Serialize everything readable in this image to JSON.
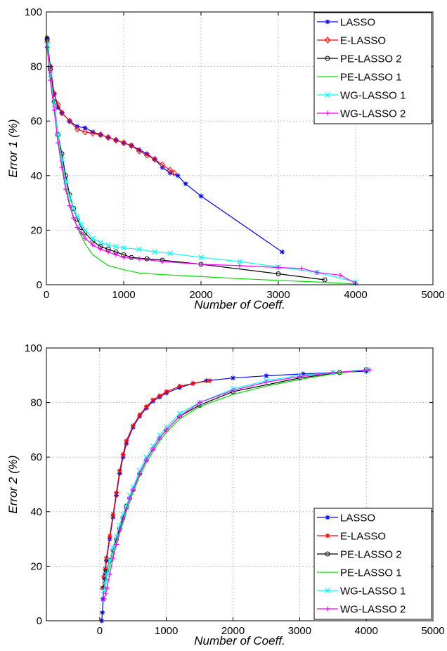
{
  "chart_data": [
    {
      "type": "line",
      "title": "",
      "xlabel": "Number of Coeff.",
      "ylabel": "Error 1 (%)",
      "xlim": [
        0,
        5000
      ],
      "ylim": [
        0,
        100
      ],
      "xticks": [
        0,
        1000,
        2000,
        3000,
        4000,
        5000
      ],
      "yticks": [
        0,
        20,
        40,
        60,
        80,
        100
      ],
      "grid": true,
      "legend_position": "top-right",
      "series": [
        {
          "name": "LASSO",
          "color": "#0000ff",
          "marker": "star",
          "x": [
            10,
            50,
            100,
            150,
            200,
            300,
            400,
            500,
            600,
            700,
            800,
            900,
            1000,
            1100,
            1200,
            1300,
            1400,
            1500,
            1600,
            1700,
            1800,
            2000,
            3050
          ],
          "y": [
            90.5,
            80,
            70,
            65,
            63,
            60,
            58,
            57.5,
            56,
            55,
            54,
            53,
            52,
            51,
            49.5,
            48,
            46,
            43,
            41,
            40,
            37,
            32.5,
            12
          ]
        },
        {
          "name": "E-LASSO",
          "color": "#ff0000",
          "marker": "diamond",
          "x": [
            10,
            50,
            100,
            150,
            200,
            300,
            400,
            500,
            600,
            700,
            800,
            900,
            1000,
            1100,
            1200,
            1300,
            1400,
            1500,
            1600,
            1650
          ],
          "y": [
            89,
            80,
            70,
            66,
            63,
            60,
            57,
            56,
            55.5,
            55,
            54,
            53,
            52,
            51,
            49,
            47.5,
            46,
            44,
            42,
            41
          ]
        },
        {
          "name": "PE-LASSO 2",
          "color": "#000000",
          "marker": "circle",
          "x": [
            10,
            50,
            100,
            150,
            200,
            250,
            300,
            350,
            400,
            450,
            500,
            600,
            700,
            800,
            900,
            1000,
            1100,
            1300,
            1500,
            2000,
            3000,
            3600
          ],
          "y": [
            90,
            79,
            67,
            55,
            48,
            40,
            33,
            28,
            24,
            21,
            19,
            16,
            14,
            13,
            12,
            11,
            10,
            9.5,
            9,
            7.5,
            4,
            1.8
          ]
        },
        {
          "name": "PE-LASSO 1",
          "color": "#00dd00",
          "marker": "none",
          "x": [
            10,
            50,
            100,
            150,
            200,
            250,
            300,
            350,
            400,
            450,
            500,
            600,
            700,
            800,
            1000,
            1200,
            1500,
            2000,
            2500,
            3000,
            3500,
            4000
          ],
          "y": [
            90,
            78,
            66,
            54,
            45,
            36,
            30,
            25,
            21,
            18,
            15,
            11,
            9,
            7,
            5.5,
            4.3,
            3.7,
            3,
            2.2,
            1.6,
            1,
            0.3
          ]
        },
        {
          "name": "WG-LASSO 1",
          "color": "#00ffff",
          "marker": "x",
          "x": [
            10,
            50,
            100,
            150,
            200,
            250,
            300,
            350,
            400,
            450,
            500,
            600,
            700,
            800,
            900,
            1000,
            1200,
            1400,
            1600,
            2000,
            2500,
            3000,
            3500,
            4000
          ],
          "y": [
            88,
            77,
            66,
            55,
            46,
            38,
            32,
            28,
            25,
            22,
            20,
            17,
            15.5,
            14.5,
            14,
            13.5,
            13,
            12,
            11.5,
            10,
            8.5,
            6.5,
            4.5,
            1
          ]
        },
        {
          "name": "WG-LASSO 2",
          "color": "#ff00ff",
          "marker": "plus",
          "x": [
            10,
            50,
            100,
            150,
            200,
            250,
            300,
            350,
            400,
            450,
            500,
            600,
            700,
            800,
            900,
            1000,
            1200,
            1500,
            2000,
            2500,
            3000,
            3300,
            3500,
            3800,
            4000
          ],
          "y": [
            87,
            75,
            64,
            52,
            43,
            35,
            29,
            24.5,
            21,
            19,
            17,
            14.5,
            13,
            12,
            11,
            10,
            9.5,
            8.5,
            7.5,
            7,
            6.3,
            6,
            4.5,
            3.5,
            0.5
          ]
        }
      ]
    },
    {
      "type": "line",
      "title": "",
      "xlabel": "Number of Coeff.",
      "ylabel": "Error 2 (%)",
      "xlim": [
        -800,
        5000
      ],
      "ylim": [
        0,
        100
      ],
      "xticks": [
        0,
        1000,
        2000,
        3000,
        4000,
        5000
      ],
      "yticks": [
        0,
        20,
        40,
        60,
        80,
        100
      ],
      "grid": true,
      "legend_position": "bottom-right",
      "series": [
        {
          "name": "LASSO",
          "color": "#0000ff",
          "marker": "star",
          "x": [
            30,
            40,
            50,
            60,
            80,
            100,
            150,
            200,
            250,
            300,
            350,
            400,
            500,
            600,
            700,
            800,
            900,
            1000,
            1200,
            1400,
            1600,
            2000,
            2500,
            3050,
            4000
          ],
          "y": [
            0,
            3,
            8,
            12,
            17,
            22,
            30,
            38,
            46,
            54,
            60,
            65,
            71,
            75,
            78,
            80.5,
            82,
            83.5,
            85.5,
            87,
            88,
            89,
            89.8,
            90.5,
            91.5
          ]
        },
        {
          "name": "E-LASSO",
          "color": "#ff0000",
          "marker": "star",
          "x": [
            40,
            60,
            80,
            100,
            150,
            200,
            250,
            300,
            350,
            400,
            500,
            600,
            700,
            800,
            900,
            1000,
            1200,
            1400,
            1650
          ],
          "y": [
            12,
            16,
            19,
            23,
            31,
            39,
            47,
            55,
            61,
            66,
            71.5,
            75.5,
            78.5,
            81,
            82.5,
            84,
            86,
            87,
            88
          ]
        },
        {
          "name": "PE-LASSO 2",
          "color": "#000000",
          "marker": "circle",
          "x": [
            60,
            80,
            100,
            150,
            200,
            250,
            300,
            350,
            400,
            450,
            500,
            600,
            700,
            800,
            900,
            1000,
            1200,
            1500,
            2000,
            3000,
            3600,
            4000
          ],
          "y": [
            12,
            15,
            18,
            22,
            26,
            30,
            34,
            38,
            42,
            45,
            48,
            54,
            59,
            63,
            67,
            70,
            75,
            79,
            84,
            89,
            91,
            92
          ]
        },
        {
          "name": "PE-LASSO 1",
          "color": "#00dd00",
          "marker": "none",
          "x": [
            60,
            80,
            100,
            150,
            200,
            300,
            400,
            500,
            600,
            700,
            800,
            900,
            1000,
            1200,
            1500,
            2000,
            2500,
            3000,
            3500,
            4000
          ],
          "y": [
            10,
            13,
            16,
            20,
            24,
            32,
            40,
            47,
            53,
            58,
            62,
            66,
            69,
            74,
            78.5,
            83,
            86,
            88.5,
            90.5,
            92
          ]
        },
        {
          "name": "WG-LASSO 1",
          "color": "#00ffff",
          "marker": "x",
          "x": [
            60,
            80,
            100,
            150,
            200,
            250,
            300,
            350,
            400,
            450,
            500,
            600,
            700,
            800,
            900,
            1000,
            1200,
            1500,
            2000,
            2500,
            3000,
            3500,
            4000
          ],
          "y": [
            11,
            14,
            17,
            22,
            27,
            31,
            35,
            39,
            42,
            46,
            49,
            55,
            60,
            64,
            68,
            71,
            76,
            80,
            85,
            88,
            90,
            91,
            92
          ]
        },
        {
          "name": "WG-LASSO 2",
          "color": "#ff00ff",
          "marker": "plus",
          "x": [
            70,
            90,
            110,
            150,
            200,
            250,
            300,
            350,
            400,
            450,
            500,
            600,
            700,
            800,
            900,
            1000,
            1200,
            1500,
            2000,
            2500,
            3000,
            3500,
            4050
          ],
          "y": [
            8,
            10,
            12,
            17,
            23,
            28,
            33,
            37,
            41,
            45,
            48,
            54,
            59,
            63,
            67,
            70,
            75,
            80,
            84.5,
            87.5,
            89.5,
            91,
            92
          ]
        }
      ]
    }
  ]
}
